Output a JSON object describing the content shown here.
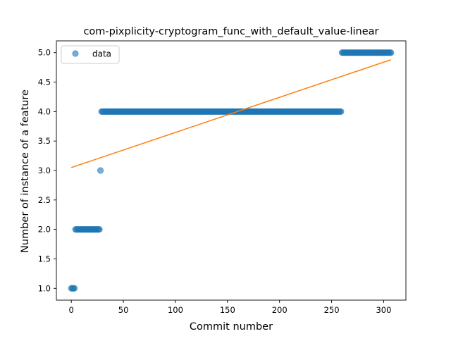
{
  "chart_data": {
    "type": "scatter",
    "title": "com-pixplicity-cryptogram_func_with_default_value-linear",
    "xlabel": "Commit number",
    "ylabel": "Number of instance of a feature",
    "xlim": [
      -14.35,
      321.35
    ],
    "ylim": [
      0.8,
      5.2
    ],
    "xticks": [
      0,
      50,
      100,
      150,
      200,
      250,
      300
    ],
    "yticks": [
      1.0,
      1.5,
      2.0,
      2.5,
      3.0,
      3.5,
      4.0,
      4.5,
      5.0
    ],
    "xtick_labels": [
      "0",
      "50",
      "100",
      "150",
      "200",
      "250",
      "300"
    ],
    "ytick_labels": [
      "1.0",
      "1.5",
      "2.0",
      "2.5",
      "3.0",
      "3.5",
      "4.0",
      "4.5",
      "5.0"
    ],
    "grid": false,
    "legend": {
      "placement": "upper-left",
      "entries": [
        "data"
      ]
    },
    "series": [
      {
        "name": "data",
        "kind": "scatter",
        "color": "#1f77b4",
        "opacity": 0.6,
        "segments": [
          {
            "x_start": 0,
            "x_end": 3,
            "y": 1
          },
          {
            "x_start": 4,
            "x_end": 27,
            "y": 2
          },
          {
            "x_start": 28,
            "x_end": 28,
            "y": 3
          },
          {
            "x_start": 29,
            "x_end": 259,
            "y": 4
          },
          {
            "x_start": 260,
            "x_end": 307,
            "y": 5
          }
        ]
      },
      {
        "kind": "line",
        "color": "#ff7f0e",
        "x": [
          0,
          307
        ],
        "y": [
          3.05,
          4.88
        ]
      }
    ]
  }
}
